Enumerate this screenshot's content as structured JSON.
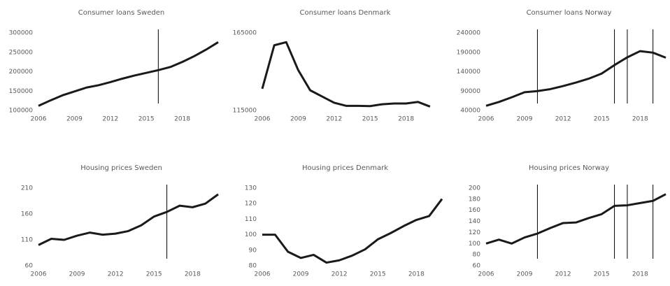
{
  "chart_data": [
    {
      "type": "line",
      "title": "Consumer loans Sweden",
      "color": "#1a1a1a",
      "x": [
        2006,
        2007,
        2008,
        2009,
        2010,
        2011,
        2012,
        2013,
        2014,
        2015,
        2016,
        2017,
        2018,
        2019,
        2020,
        2021
      ],
      "values": [
        112000,
        126000,
        139000,
        149000,
        159000,
        165000,
        173000,
        182000,
        190000,
        197000,
        204000,
        212000,
        225000,
        240000,
        257000,
        276000
      ],
      "xlim": [
        2006,
        2021
      ],
      "xticks": [
        2006,
        2009,
        2012,
        2015,
        2018
      ],
      "ylim": [
        100000,
        300000
      ],
      "yticks": [
        100000,
        150000,
        200000,
        250000,
        300000
      ],
      "vlines": [
        2016
      ]
    },
    {
      "type": "line",
      "title": "Consumer loans Denmark",
      "color": "#1a1a1a",
      "x": [
        2006,
        2007,
        2008,
        2009,
        2010,
        2011,
        2012,
        2013,
        2014,
        2015,
        2016,
        2017,
        2018,
        2019,
        2020
      ],
      "values": [
        129000,
        157000,
        159000,
        141000,
        128000,
        124000,
        120000,
        118000,
        118000,
        117800,
        119000,
        119500,
        119500,
        120500,
        117500
      ],
      "xlim": [
        2006,
        2021
      ],
      "xticks": [
        2006,
        2009,
        2012,
        2015,
        2018
      ],
      "ylim": [
        115000,
        165000
      ],
      "yticks": [
        115000,
        165000
      ],
      "vlines": []
    },
    {
      "type": "line",
      "title": "Consumer loans Norway",
      "color": "#1a1a1a",
      "x": [
        2006,
        2007,
        2008,
        2009,
        2010,
        2011,
        2012,
        2013,
        2014,
        2015,
        2016,
        2017,
        2018,
        2019,
        2020
      ],
      "values": [
        52000,
        62000,
        74000,
        87000,
        90000,
        95000,
        103000,
        112000,
        122000,
        135000,
        157000,
        177000,
        193000,
        189000,
        176000
      ],
      "xlim": [
        2006,
        2020
      ],
      "xticks": [
        2006,
        2009,
        2012,
        2015,
        2018
      ],
      "ylim": [
        40000,
        240000
      ],
      "yticks": [
        40000,
        90000,
        140000,
        190000,
        240000
      ],
      "vlines": [
        2010,
        2016,
        2017,
        2019
      ]
    },
    {
      "type": "line",
      "title": "Housing prices Sweden",
      "color": "#1a1a1a",
      "x": [
        2006,
        2007,
        2008,
        2009,
        2010,
        2011,
        2012,
        2013,
        2014,
        2015,
        2016,
        2017,
        2018,
        2019,
        2020
      ],
      "values": [
        100,
        112,
        110,
        118,
        124,
        120,
        122,
        127,
        138,
        155,
        164,
        176,
        173,
        180,
        198
      ],
      "xlim": [
        2006,
        2020
      ],
      "xticks": [
        2006,
        2009,
        2012,
        2015,
        2018
      ],
      "ylim": [
        60,
        210
      ],
      "yticks": [
        60,
        110,
        160,
        210
      ],
      "vlines": [
        2016
      ]
    },
    {
      "type": "line",
      "title": "Housing prices Denmark",
      "color": "#1a1a1a",
      "x": [
        2006,
        2007,
        2008,
        2009,
        2010,
        2011,
        2012,
        2013,
        2014,
        2015,
        2016,
        2017,
        2018,
        2019,
        2020
      ],
      "values": [
        100,
        100,
        89,
        85,
        87,
        82,
        83.5,
        86.5,
        90.5,
        97,
        101,
        105.5,
        109.5,
        112,
        123
      ],
      "xlim": [
        2006,
        2020
      ],
      "xticks": [
        2006,
        2009,
        2012,
        2015,
        2018
      ],
      "ylim": [
        80,
        130
      ],
      "yticks": [
        80,
        90,
        100,
        110,
        120,
        130
      ],
      "vlines": []
    },
    {
      "type": "line",
      "title": "Housing prices Norway",
      "color": "#1a1a1a",
      "x": [
        2006,
        2007,
        2008,
        2009,
        2010,
        2011,
        2012,
        2013,
        2014,
        2015,
        2016,
        2017,
        2018,
        2019,
        2020
      ],
      "values": [
        100,
        107,
        100,
        111,
        118,
        128,
        137,
        138,
        146,
        153,
        168,
        169,
        173,
        177,
        189
      ],
      "xlim": [
        2006,
        2020
      ],
      "xticks": [
        2006,
        2009,
        2012,
        2015,
        2018
      ],
      "ylim": [
        60,
        200
      ],
      "yticks": [
        60,
        80,
        100,
        120,
        140,
        160,
        180,
        200
      ],
      "vlines": [
        2010,
        2016,
        2017,
        2019
      ]
    }
  ]
}
